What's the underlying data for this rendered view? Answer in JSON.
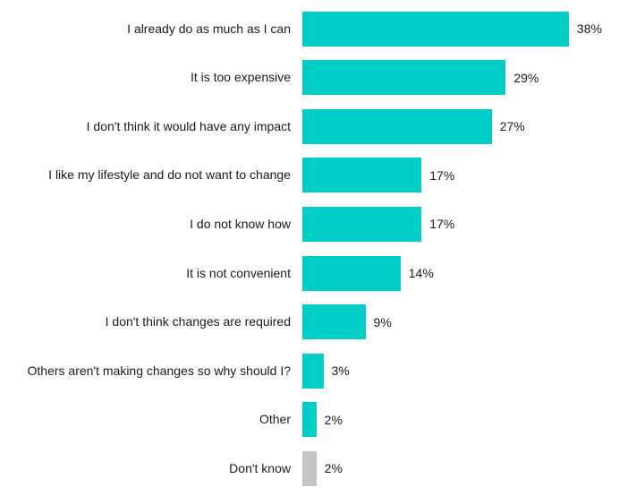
{
  "chart_data": {
    "type": "bar",
    "orientation": "horizontal",
    "categories": [
      "I already do as much as I can",
      "It is too expensive",
      "I don't think it would have any impact",
      "I like my lifestyle and do not want to change",
      "I do not know how",
      "It is not convenient",
      "I don't think changes are required",
      "Others aren't making changes so why should I?",
      "Other",
      "Don't know"
    ],
    "values": [
      38,
      29,
      27,
      17,
      17,
      14,
      9,
      3,
      2,
      2
    ],
    "value_labels": [
      "38%",
      "29%",
      "27%",
      "17%",
      "17%",
      "14%",
      "9%",
      "3%",
      "2%",
      "2%"
    ],
    "colors": [
      "#00cec6",
      "#00cec6",
      "#00cec6",
      "#00cec6",
      "#00cec6",
      "#00cec6",
      "#00cec6",
      "#00cec6",
      "#00cec6",
      "#c4c4c4"
    ]
  }
}
